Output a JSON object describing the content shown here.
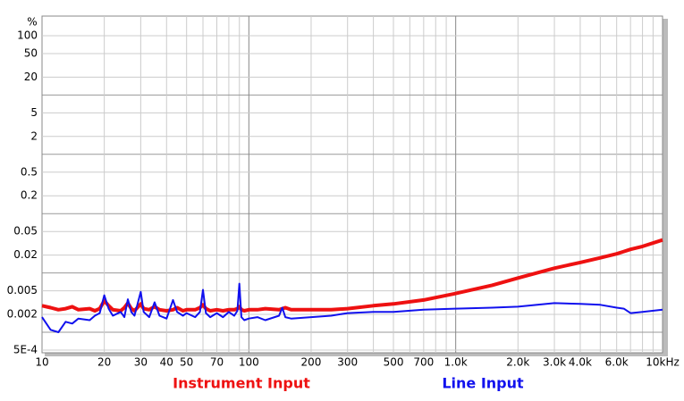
{
  "chart_data": {
    "type": "line",
    "y_unit": "%",
    "log_x": true,
    "log_y": true,
    "grid": true,
    "xlim": [
      10,
      10000
    ],
    "ylim": [
      0.0005,
      200
    ],
    "xticks": [
      10,
      20,
      30,
      40,
      50,
      70,
      100,
      200,
      300,
      500,
      700,
      {
        "value": 1000,
        "label": "1.0k"
      },
      {
        "value": 2000,
        "label": "2.0k"
      },
      {
        "value": 3000,
        "label": "3.0k"
      },
      {
        "value": 4000,
        "label": "4.0k"
      },
      {
        "value": 6000,
        "label": "6.0k"
      },
      {
        "value": 10000,
        "label": "10kHz"
      }
    ],
    "yticks": [
      100,
      50,
      20,
      5,
      2,
      0.5,
      0.2,
      0.05,
      0.02,
      0.005,
      0.002,
      {
        "value": 0.0005,
        "label": "5E-4"
      }
    ],
    "x_minor_grid": [
      60,
      80,
      90,
      400,
      600,
      800,
      900,
      5000,
      7000,
      8000,
      9000
    ],
    "y_decade_grid": [
      100,
      10,
      1,
      0.1,
      0.01,
      0.001
    ],
    "x": [
      10,
      11,
      12,
      13,
      14,
      15,
      17,
      18,
      19,
      20,
      21,
      22,
      24,
      25,
      26,
      27,
      28,
      30,
      31,
      33,
      35,
      37,
      40,
      43,
      45,
      48,
      50,
      55,
      58,
      60,
      62,
      65,
      70,
      75,
      80,
      85,
      88,
      90,
      92,
      95,
      100,
      110,
      120,
      140,
      145,
      150,
      160,
      200,
      250,
      300,
      400,
      500,
      700,
      1000,
      1500,
      2000,
      3000,
      4000,
      5000,
      6000,
      6500,
      7000,
      8000,
      10000
    ],
    "series": [
      {
        "name": "Instrument Input",
        "color": "#ee1111",
        "width": 4,
        "values": [
          0.0028,
          0.0026,
          0.0024,
          0.0025,
          0.0027,
          0.0024,
          0.0025,
          0.0023,
          0.0025,
          0.0034,
          0.0028,
          0.0024,
          0.0023,
          0.0026,
          0.0031,
          0.0025,
          0.0023,
          0.003,
          0.0025,
          0.0024,
          0.0027,
          0.0024,
          0.0023,
          0.0024,
          0.0026,
          0.0023,
          0.0024,
          0.0024,
          0.0026,
          0.0029,
          0.0025,
          0.0023,
          0.0024,
          0.0023,
          0.0024,
          0.0024,
          0.0025,
          0.0027,
          0.0024,
          0.0023,
          0.0024,
          0.0024,
          0.0025,
          0.0024,
          0.0025,
          0.0026,
          0.0024,
          0.0024,
          0.0024,
          0.0025,
          0.0028,
          0.003,
          0.0035,
          0.0045,
          0.0062,
          0.0082,
          0.012,
          0.015,
          0.018,
          0.021,
          0.023,
          0.025,
          0.028,
          0.036
        ]
      },
      {
        "name": "Line Input",
        "color": "#1111ee",
        "width": 2,
        "values": [
          0.0018,
          0.0011,
          0.001,
          0.0015,
          0.0014,
          0.0017,
          0.0016,
          0.0019,
          0.0021,
          0.0042,
          0.0025,
          0.0019,
          0.0022,
          0.0018,
          0.0036,
          0.0022,
          0.0019,
          0.0048,
          0.0022,
          0.0018,
          0.0032,
          0.0019,
          0.0017,
          0.0035,
          0.0022,
          0.0019,
          0.0021,
          0.0018,
          0.0022,
          0.0052,
          0.0021,
          0.0018,
          0.0021,
          0.0018,
          0.0022,
          0.0019,
          0.0023,
          0.0066,
          0.0018,
          0.0016,
          0.0017,
          0.0018,
          0.0016,
          0.0019,
          0.0026,
          0.0018,
          0.0017,
          0.0018,
          0.0019,
          0.0021,
          0.0022,
          0.0022,
          0.0024,
          0.0025,
          0.0026,
          0.0027,
          0.0031,
          0.003,
          0.0029,
          0.0026,
          0.0025,
          0.0021,
          0.0022,
          0.0024
        ]
      }
    ]
  }
}
